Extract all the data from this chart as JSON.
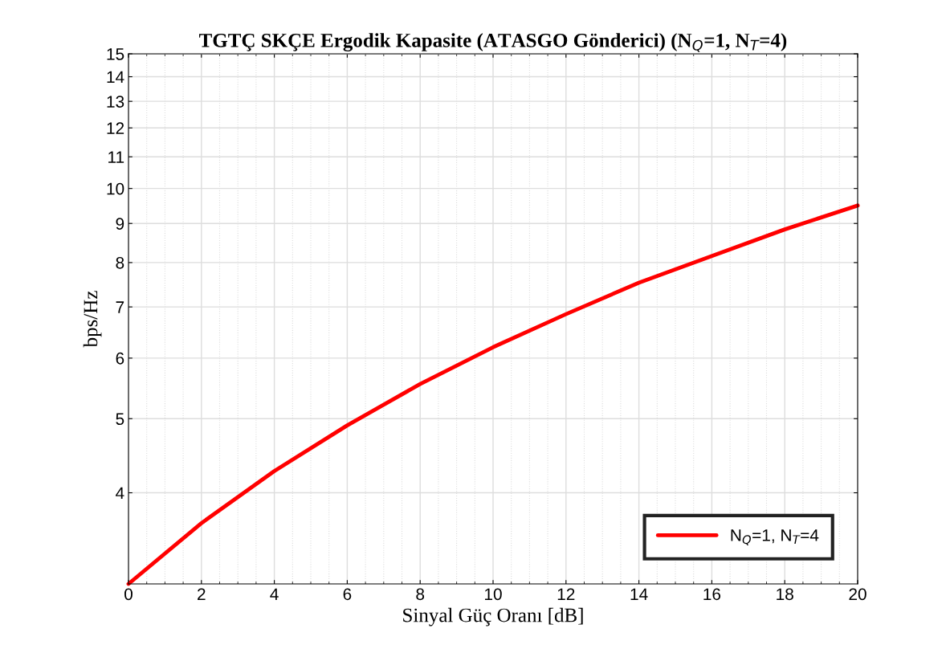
{
  "chart_data": {
    "type": "line",
    "title": "TGTÇ SKÇE Ergodik Kapasite (ATASGO Gönderici) (N$_{Q}$=1, N$_{T}$=4)",
    "xlabel": "Sinyal Güç Oranı [dB]",
    "ylabel": "bps/Hz",
    "x": [
      0,
      2,
      4,
      6,
      8,
      10,
      12,
      14,
      16,
      18,
      20
    ],
    "series": [
      {
        "name": "N$_{Q}$=1, N$_{T}$=4",
        "color": "#ff0000",
        "values": [
          3.04,
          3.65,
          4.27,
          4.9,
          5.55,
          6.2,
          6.85,
          7.53,
          8.16,
          8.84,
          9.5
        ]
      }
    ],
    "log": "y",
    "xlim": [
      0,
      20
    ],
    "xticks": [
      0,
      2,
      4,
      6,
      8,
      10,
      12,
      14,
      16,
      18,
      20
    ],
    "ylim": [
      3.04,
      15
    ],
    "yticks": [
      4,
      5,
      6,
      7,
      8,
      9,
      10,
      11,
      12,
      13,
      14,
      15
    ],
    "grid": true,
    "legend": "bottom right",
    "marker": "none",
    "line_style": "solid"
  }
}
